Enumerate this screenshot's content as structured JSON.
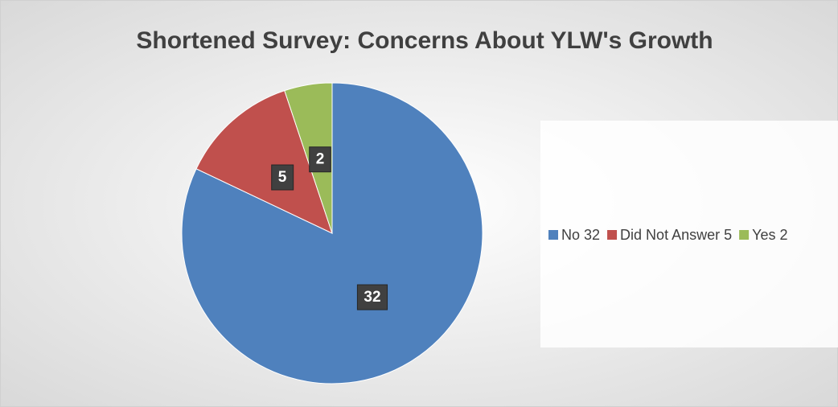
{
  "chart_data": {
    "type": "pie",
    "title": "Shortened Survey: Concerns About YLW's Growth",
    "categories": [
      "No 32",
      "Did Not Answer 5",
      "Yes 2"
    ],
    "values": [
      32,
      5,
      2
    ],
    "colors": [
      "#4f81bd",
      "#c0504d",
      "#9bbb59"
    ],
    "legend": "right"
  }
}
